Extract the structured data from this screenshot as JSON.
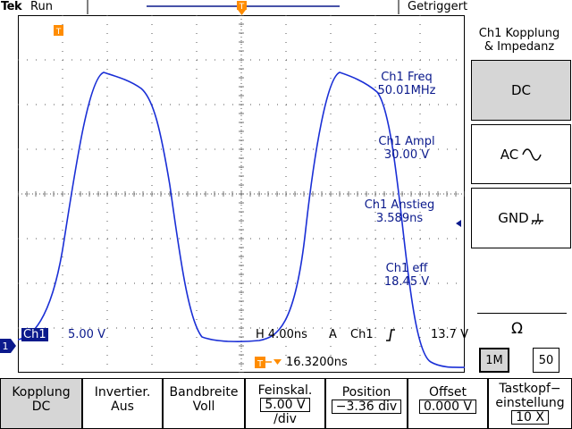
{
  "header": {
    "brand": "Tek",
    "status": "Run",
    "trigger_state": "Getriggert"
  },
  "measurements": [
    {
      "label": "Ch1 Freq",
      "value": "50.01MHz"
    },
    {
      "label": "Ch1 Ampl",
      "value": "30.00 V"
    },
    {
      "label": "Ch1 Anstieg",
      "value": "3.589ns"
    },
    {
      "label": "Ch1 eff",
      "value": "18.45 V"
    }
  ],
  "channel": {
    "label": "Ch1",
    "scale": "5.00 V",
    "marker": "1"
  },
  "timebase": "H 4.00ns",
  "trigger": {
    "mode": "A",
    "channel": "Ch1",
    "slope_icon": "rising-edge-icon",
    "level": "13.7 V",
    "marker": "T"
  },
  "delay": "16.3200ns",
  "right_panel": {
    "title_line1": "Ch1 Kopplung",
    "title_line2": "& Impedanz",
    "buttons": [
      "DC",
      "AC",
      "GND"
    ],
    "impedance_symbol": "Ω",
    "impedance_options": [
      "1M",
      "50"
    ]
  },
  "bottom_menu": [
    {
      "line1": "Kopplung",
      "line2": "DC"
    },
    {
      "line1": "Invertier.",
      "line2": "Aus"
    },
    {
      "line1": "Bandbreite",
      "line2": "Voll"
    },
    {
      "line1": "Feinskal.",
      "line2": "5.00 V",
      "line3": "/div"
    },
    {
      "line1": "Position",
      "line2": "−3.36 div"
    },
    {
      "line1": "Offset",
      "line2": "0.000 V"
    },
    {
      "line1": "Tastkopf−",
      "line2": "einstellung",
      "line3": "10 X"
    }
  ],
  "colors": {
    "trace": "#1a2fd6",
    "marker": "#ff8c00",
    "text_blue": "#0b1a8c",
    "selected": "#d6d6d6"
  }
}
